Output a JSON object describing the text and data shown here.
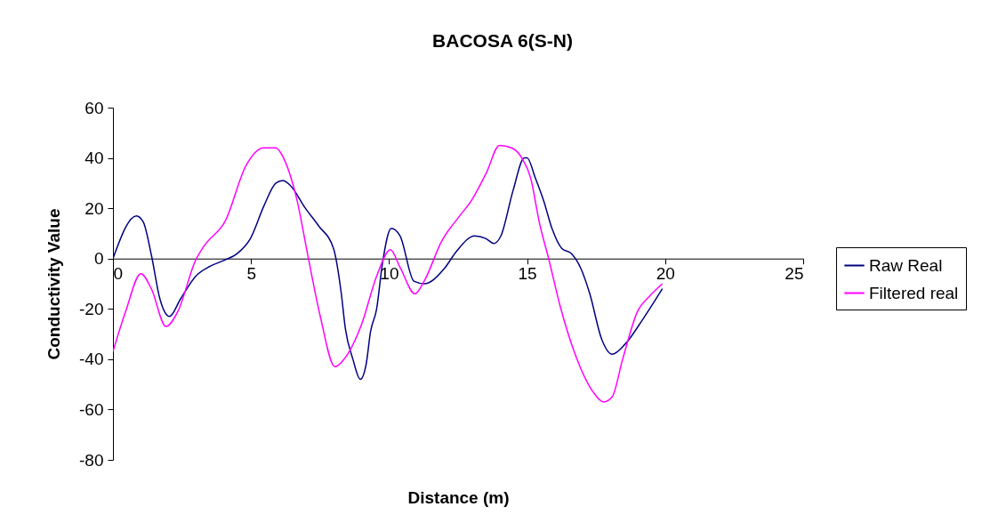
{
  "chart_data": {
    "type": "line",
    "title": "BACOSA 6(S-N)",
    "xlabel": "Distance (m)",
    "ylabel": "Conductivity Value",
    "xlim": [
      0,
      25
    ],
    "xticks": [
      0,
      5,
      10,
      15,
      20,
      25
    ],
    "ylim": [
      -80,
      60
    ],
    "yticks": [
      -80,
      -60,
      -40,
      -20,
      0,
      20,
      40,
      60
    ],
    "grid": false,
    "legend": "right",
    "marker": "none",
    "line_style": "solid",
    "series": [
      {
        "name": "Raw Real",
        "color": "#000080",
        "x": [
          0,
          0.85,
          1.1,
          1.39,
          1.7,
          2.05,
          2.45,
          3.0,
          3.53,
          4.07,
          4.5,
          4.98,
          5.47,
          5.9,
          6.15,
          6.43,
          6.97,
          7.45,
          7.99,
          8.26,
          8.42,
          8.69,
          8.96,
          9.17,
          9.33,
          9.55,
          9.76,
          10.08,
          10.4,
          10.9,
          11.27,
          12.0,
          12.45,
          13.1,
          13.5,
          13.8,
          14.05,
          14.49,
          14.9,
          15.0,
          15.3,
          15.6,
          15.9,
          16.26,
          16.6,
          16.95,
          17.27,
          17.7,
          18.08,
          18.55,
          19.2,
          19.9
        ],
        "values": [
          0,
          17,
          14.5,
          1.5,
          -16,
          -23,
          -16,
          -7,
          -3,
          -0.5,
          2,
          8,
          21,
          30,
          31,
          29,
          20,
          13,
          4,
          -13,
          -28,
          -40,
          -48,
          -42,
          -29,
          -20,
          -2,
          12,
          9,
          -9,
          -10,
          -4,
          3,
          9,
          8,
          6,
          9,
          27,
          40,
          40,
          32,
          23,
          12,
          4,
          2,
          -4,
          -14,
          -32,
          -38,
          -34,
          -24,
          -12
        ]
      },
      {
        "name": "Filtered real",
        "color": "#ff00ff",
        "x": [
          0,
          0.46,
          1.01,
          1.39,
          1.92,
          2.35,
          3.0,
          3.3,
          4.07,
          4.82,
          5.46,
          5.89,
          6.22,
          6.65,
          7.08,
          7.51,
          8.04,
          8.37,
          9.01,
          9.55,
          10.05,
          10.4,
          10.94,
          11.27,
          11.91,
          12.56,
          12.98,
          13.52,
          14.0,
          14.44,
          14.81,
          15.13,
          15.45,
          15.78,
          16.2,
          16.74,
          17.39,
          17.77,
          18.08,
          18.46,
          19.0,
          19.43,
          19.9
        ],
        "values": [
          -37,
          -21,
          -6,
          -12,
          -27,
          -21,
          -0.5,
          5,
          15,
          37,
          44,
          44,
          39,
          24,
          0,
          -23,
          -43,
          -40,
          -26,
          -7,
          3.5,
          -3.5,
          -14,
          -9,
          7,
          17,
          23,
          34,
          45,
          44,
          40,
          32,
          14,
          0,
          -19,
          -38,
          -53,
          -57,
          -55,
          -40,
          -21,
          -15,
          -10
        ]
      }
    ]
  }
}
